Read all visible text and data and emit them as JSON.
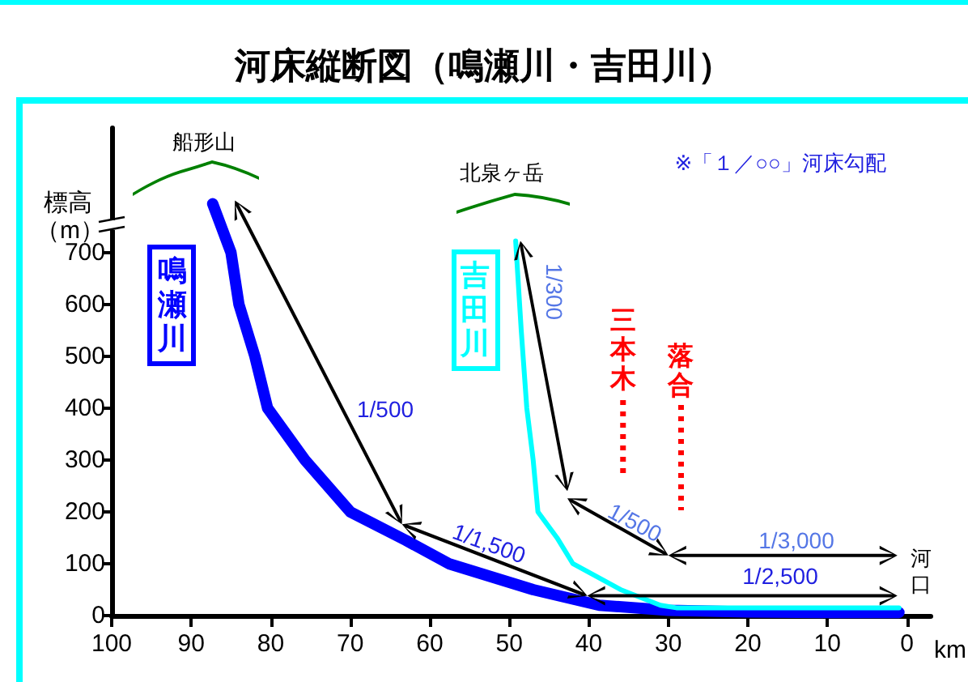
{
  "chart_data": {
    "type": "line",
    "title": "河床縦断図（鳴瀬川・吉田川）",
    "xlabel": "km",
    "ylabel": "標高（m）",
    "xlim": [
      100,
      -3
    ],
    "xticks": [
      100,
      90,
      80,
      70,
      60,
      50,
      40,
      30,
      20,
      10,
      0
    ],
    "ylim": [
      0,
      940
    ],
    "yticks": [
      0,
      100,
      200,
      300,
      400,
      500,
      600,
      700
    ],
    "marker": "none",
    "line_style": "solid",
    "series": [
      {
        "name": "鳴瀬川",
        "color": "#0000ff",
        "x": [
          87.3,
          85,
          84,
          82,
          80.4,
          75.7,
          70,
          63,
          57.6,
          47,
          38.7,
          30,
          20,
          10,
          1
        ],
        "values": [
          794,
          700,
          600,
          500,
          400,
          300,
          200,
          145,
          100,
          50,
          20,
          10,
          7,
          6,
          6
        ]
      },
      {
        "name": "吉田川",
        "color": "#00ffff",
        "x": [
          49.2,
          48.5,
          47.8,
          47,
          46.4,
          44,
          42,
          36,
          31,
          29,
          20,
          10,
          1
        ],
        "values": [
          722,
          550,
          400,
          300,
          200,
          150,
          100,
          50,
          20,
          15,
          15,
          15,
          15
        ]
      }
    ],
    "ref_lines": [
      {
        "axis": "x",
        "value": 35.7,
        "label": "三本木",
        "color": "#ff0000",
        "line_style": "dotted"
      },
      {
        "axis": "x",
        "value": 28.4,
        "label": "落合",
        "color": "#ff0000",
        "line_style": "dotted"
      }
    ],
    "annotations": [
      "船形山",
      "北泉ヶ岳",
      "※「１／○○」河床勾配",
      "1/500",
      "1/1,500",
      "1/300",
      "1/500",
      "1/3,000",
      "1/2,500",
      "河口"
    ]
  }
}
